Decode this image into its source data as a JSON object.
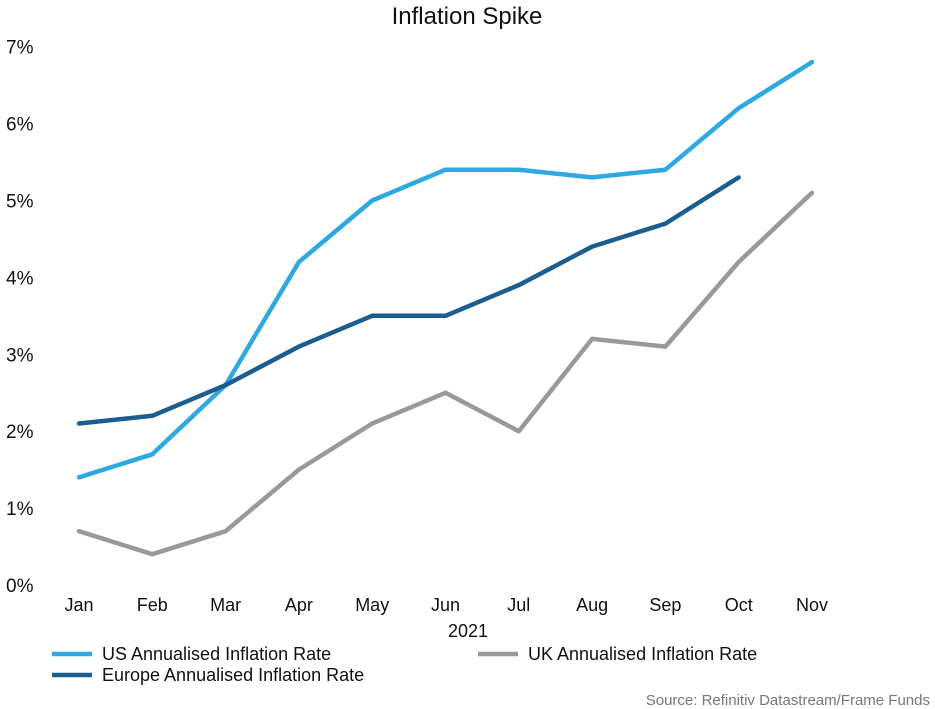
{
  "chart_data": {
    "type": "line",
    "title": "Inflation Spike",
    "xlabel": "2021",
    "ylabel": "",
    "categories": [
      "Jan",
      "Feb",
      "Mar",
      "Apr",
      "May",
      "Jun",
      "Jul",
      "Aug",
      "Sep",
      "Oct",
      "Nov"
    ],
    "y_ticks": [
      "0%",
      "1%",
      "2%",
      "3%",
      "4%",
      "5%",
      "6%",
      "7%"
    ],
    "ylim": [
      0,
      7
    ],
    "grid": false,
    "legend_position": "bottom",
    "series": [
      {
        "name": "US Annualised Inflation Rate",
        "color": "#2EA8E0",
        "values": [
          1.4,
          1.7,
          2.6,
          4.2,
          5.0,
          5.4,
          5.4,
          5.3,
          5.4,
          6.2,
          6.8
        ]
      },
      {
        "name": "UK Annualised Inflation Rate",
        "color": "#999999",
        "values": [
          0.7,
          0.4,
          0.7,
          1.5,
          2.1,
          2.5,
          2.0,
          3.2,
          3.1,
          4.2,
          5.1
        ]
      },
      {
        "name": "Europe Annualised Inflation Rate",
        "color": "#1B5E8E",
        "values": [
          2.1,
          2.2,
          2.6,
          3.1,
          3.5,
          3.5,
          3.9,
          4.4,
          4.7,
          5.3,
          null
        ]
      }
    ],
    "source": "Source: Refinitiv Datastream/Frame Funds"
  }
}
